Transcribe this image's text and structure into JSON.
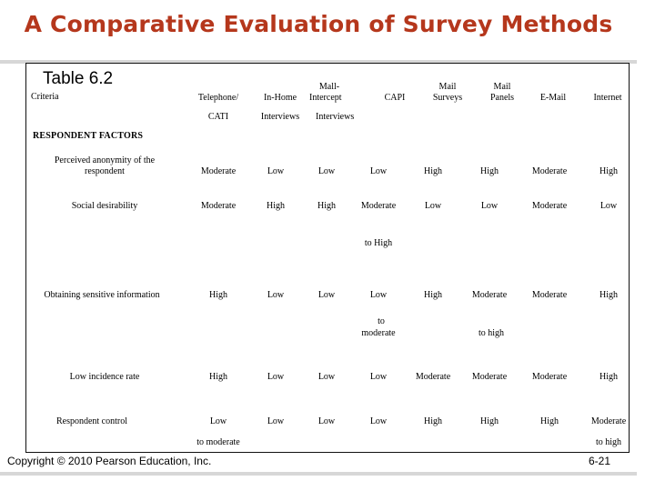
{
  "slide": {
    "title": "A Comparative Evaluation of Survey Methods",
    "table_label": "Table 6.2",
    "footer": "Copyright © 2010 Pearson Education, Inc.",
    "page_number": "6-21"
  },
  "header": {
    "criteria": "Criteria",
    "telephone_1": "Telephone/",
    "telephone_2": "CATI",
    "inhome_1": "In-Home",
    "inhome_2": "Interviews",
    "mall_1": "Mall-",
    "mall_2": "Intercept",
    "mall_3": "Interviews",
    "capi": "CAPI",
    "mailsurveys_1": "Mail",
    "mailsurveys_2": "Surveys",
    "mailpanels_1": "Mail",
    "mailpanels_2": "Panels",
    "email": "E-Mail",
    "internet": "Internet"
  },
  "section": "RESPONDENT FACTORS",
  "rows": [
    {
      "criterion_1": "Perceived anonymity of the",
      "criterion_2": "respondent",
      "values": [
        "Moderate",
        "Low",
        "Low",
        "Low",
        "High",
        "High",
        "Moderate",
        "High"
      ]
    },
    {
      "criterion_1": "Social desirability",
      "values": [
        "Moderate",
        "High",
        "High",
        "Moderate",
        "Low",
        "Low",
        "Moderate",
        "Low"
      ],
      "capi_cont": "to High"
    },
    {
      "criterion_1": "Obtaining sensitive information",
      "values": [
        "High",
        "Low",
        "Low",
        "Low",
        "High",
        "Moderate",
        "Moderate",
        "High"
      ],
      "capi_cont_1": "to",
      "capi_cont_2": "moderate",
      "mailpanels_cont": "to high"
    },
    {
      "criterion_1": "Low incidence rate",
      "values": [
        "High",
        "Low",
        "Low",
        "Low",
        "Moderate",
        "Moderate",
        "Moderate",
        "High"
      ]
    },
    {
      "criterion_1": "Respondent control",
      "values": [
        "Low",
        "Low",
        "Low",
        "Low",
        "High",
        "High",
        "High",
        "Moderate"
      ],
      "telephone_cont": "to moderate",
      "internet_cont": "to high"
    }
  ]
}
